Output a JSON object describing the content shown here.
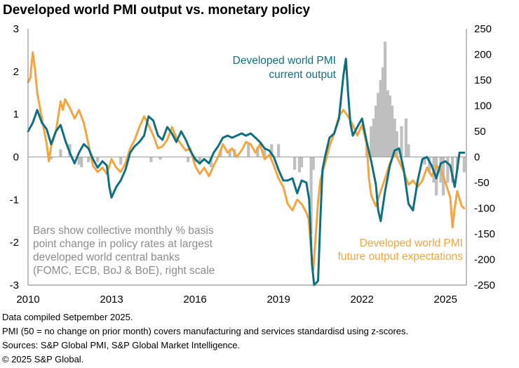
{
  "title": "Developed world PMI output vs. monetary policy",
  "annotations": {
    "current_output": [
      "Developed world PMI",
      "current output"
    ],
    "future_output": [
      "Developed world PMI",
      "future output expectations"
    ],
    "bars_note": [
      "Bars show collective monthly % basis",
      "point change in policy rates at largest",
      "developed world central banks",
      "(FOMC, ECB, BoJ & BoE), right scale"
    ]
  },
  "footnotes": [
    "Data compiled Setpember 2025.",
    "PMI (50 = no change on prior month) covers manufacturing and services standardisd using z-scores.",
    "Sources: S&P Global PMI, S&P Global Market Intelligence.",
    "© 2025 S&P Global."
  ],
  "colors": {
    "current": "#0e6f80",
    "future": "#f2a540",
    "bars": "#bfbfbf",
    "axis": "#7f7f7f"
  },
  "chart_data": {
    "type": "line",
    "x_unit": "year",
    "xlim": [
      2010.0,
      2025.75
    ],
    "x_ticks": [
      2010,
      2013,
      2016,
      2019,
      2022,
      2025
    ],
    "x_tick_labels": [
      "2010",
      "2013",
      "2016",
      "2019",
      "2022",
      "2025"
    ],
    "ylim_left": [
      -3,
      3
    ],
    "y_ticks_left": [
      3,
      2,
      1,
      0,
      -1,
      -2,
      -3
    ],
    "ylim_right": [
      -250,
      250
    ],
    "y_ticks_right": [
      250,
      200,
      150,
      100,
      50,
      0,
      -50,
      -100,
      -150,
      -200,
      -250
    ],
    "grid": false,
    "series": [
      {
        "name": "Developed world PMI current output",
        "axis": "left",
        "points": [
          [
            2010.0,
            0.6
          ],
          [
            2010.17,
            0.8
          ],
          [
            2010.33,
            1.1
          ],
          [
            2010.5,
            0.8
          ],
          [
            2010.67,
            0.65
          ],
          [
            2010.83,
            0.3
          ],
          [
            2011.0,
            0.6
          ],
          [
            2011.17,
            0.75
          ],
          [
            2011.33,
            0.4
          ],
          [
            2011.5,
            0.1
          ],
          [
            2011.67,
            -0.15
          ],
          [
            2011.83,
            0.1
          ],
          [
            2012.0,
            0.3
          ],
          [
            2012.17,
            0.2
          ],
          [
            2012.33,
            -0.05
          ],
          [
            2012.5,
            -0.25
          ],
          [
            2012.67,
            -0.1
          ],
          [
            2012.83,
            -0.2
          ],
          [
            2012.92,
            -0.7
          ],
          [
            2013.0,
            -0.95
          ],
          [
            2013.17,
            -0.7
          ],
          [
            2013.33,
            -0.55
          ],
          [
            2013.5,
            -0.3
          ],
          [
            2013.67,
            0.1
          ],
          [
            2013.83,
            0.25
          ],
          [
            2014.0,
            0.35
          ],
          [
            2014.17,
            0.5
          ],
          [
            2014.33,
            0.95
          ],
          [
            2014.5,
            0.85
          ],
          [
            2014.67,
            0.5
          ],
          [
            2014.83,
            0.4
          ],
          [
            2015.0,
            0.7
          ],
          [
            2015.17,
            0.55
          ],
          [
            2015.33,
            0.35
          ],
          [
            2015.5,
            0.6
          ],
          [
            2015.67,
            0.4
          ],
          [
            2015.83,
            0.15
          ],
          [
            2016.0,
            -0.05
          ],
          [
            2016.17,
            -0.15
          ],
          [
            2016.33,
            -0.05
          ],
          [
            2016.5,
            -0.15
          ],
          [
            2016.67,
            0.1
          ],
          [
            2016.83,
            0.25
          ],
          [
            2017.0,
            0.45
          ],
          [
            2017.17,
            0.5
          ],
          [
            2017.33,
            0.45
          ],
          [
            2017.5,
            0.5
          ],
          [
            2017.67,
            0.55
          ],
          [
            2017.83,
            0.5
          ],
          [
            2018.0,
            0.55
          ],
          [
            2018.17,
            0.45
          ],
          [
            2018.33,
            0.35
          ],
          [
            2018.5,
            0.2
          ],
          [
            2018.67,
            0.15
          ],
          [
            2018.83,
            0.0
          ],
          [
            2019.0,
            -0.3
          ],
          [
            2019.17,
            -0.55
          ],
          [
            2019.33,
            -0.55
          ],
          [
            2019.5,
            -0.5
          ],
          [
            2019.67,
            -0.85
          ],
          [
            2019.83,
            -0.55
          ],
          [
            2020.0,
            -0.6
          ],
          [
            2020.1,
            -1.0
          ],
          [
            2020.2,
            -2.5
          ],
          [
            2020.28,
            -3.0
          ],
          [
            2020.42,
            -2.9
          ],
          [
            2020.5,
            -1.5
          ],
          [
            2020.58,
            -0.3
          ],
          [
            2020.67,
            0.0
          ],
          [
            2020.83,
            0.45
          ],
          [
            2021.0,
            0.55
          ],
          [
            2021.17,
            0.9
          ],
          [
            2021.33,
            1.9
          ],
          [
            2021.42,
            2.3
          ],
          [
            2021.5,
            1.5
          ],
          [
            2021.58,
            0.8
          ],
          [
            2021.67,
            0.5
          ],
          [
            2021.83,
            0.7
          ],
          [
            2022.0,
            0.9
          ],
          [
            2022.17,
            0.35
          ],
          [
            2022.33,
            -0.1
          ],
          [
            2022.5,
            -0.65
          ],
          [
            2022.58,
            -1.25
          ],
          [
            2022.67,
            -1.5
          ],
          [
            2022.83,
            -0.8
          ],
          [
            2023.0,
            -0.2
          ],
          [
            2023.17,
            0.15
          ],
          [
            2023.33,
            0.2
          ],
          [
            2023.5,
            -0.3
          ],
          [
            2023.67,
            -1.1
          ],
          [
            2023.83,
            -1.25
          ],
          [
            2024.0,
            -0.55
          ],
          [
            2024.17,
            -0.05
          ],
          [
            2024.33,
            0.0
          ],
          [
            2024.5,
            -0.2
          ],
          [
            2024.67,
            -0.5
          ],
          [
            2024.83,
            -0.15
          ],
          [
            2025.0,
            -0.1
          ],
          [
            2025.17,
            -0.2
          ],
          [
            2025.33,
            -0.7
          ],
          [
            2025.42,
            -0.3
          ],
          [
            2025.5,
            0.1
          ],
          [
            2025.67,
            0.1
          ]
        ]
      },
      {
        "name": "Developed world PMI future output expectations",
        "axis": "left",
        "points": [
          [
            2010.0,
            1.75
          ],
          [
            2010.08,
            1.85
          ],
          [
            2010.17,
            2.45
          ],
          [
            2010.25,
            2.05
          ],
          [
            2010.33,
            1.5
          ],
          [
            2010.5,
            0.9
          ],
          [
            2010.67,
            0.3
          ],
          [
            2010.75,
            -0.1
          ],
          [
            2010.83,
            0.25
          ],
          [
            2011.0,
            0.6
          ],
          [
            2011.17,
            1.3
          ],
          [
            2011.25,
            1.1
          ],
          [
            2011.33,
            1.35
          ],
          [
            2011.5,
            1.15
          ],
          [
            2011.67,
            0.9
          ],
          [
            2011.83,
            1.1
          ],
          [
            2012.0,
            0.8
          ],
          [
            2012.17,
            0.3
          ],
          [
            2012.33,
            -0.2
          ],
          [
            2012.5,
            -0.35
          ],
          [
            2012.67,
            -0.25
          ],
          [
            2012.83,
            -0.4
          ],
          [
            2013.0,
            -0.05
          ],
          [
            2013.17,
            -0.25
          ],
          [
            2013.33,
            -0.35
          ],
          [
            2013.5,
            -0.15
          ],
          [
            2013.67,
            0.2
          ],
          [
            2013.83,
            0.4
          ],
          [
            2014.0,
            0.7
          ],
          [
            2014.17,
            0.95
          ],
          [
            2014.33,
            0.75
          ],
          [
            2014.5,
            0.5
          ],
          [
            2014.67,
            0.2
          ],
          [
            2014.83,
            0.25
          ],
          [
            2015.0,
            0.4
          ],
          [
            2015.17,
            0.7
          ],
          [
            2015.33,
            0.45
          ],
          [
            2015.5,
            0.3
          ],
          [
            2015.67,
            0.15
          ],
          [
            2015.83,
            0.2
          ],
          [
            2016.0,
            -0.2
          ],
          [
            2016.17,
            -0.4
          ],
          [
            2016.33,
            -0.25
          ],
          [
            2016.5,
            -0.45
          ],
          [
            2016.67,
            -0.2
          ],
          [
            2016.83,
            0.0
          ],
          [
            2017.0,
            0.3
          ],
          [
            2017.17,
            0.1
          ],
          [
            2017.33,
            0.2
          ],
          [
            2017.5,
            0.0
          ],
          [
            2017.67,
            0.15
          ],
          [
            2017.83,
            0.35
          ],
          [
            2018.0,
            0.3
          ],
          [
            2018.17,
            0.1
          ],
          [
            2018.33,
            0.3
          ],
          [
            2018.5,
            -0.05
          ],
          [
            2018.67,
            0.05
          ],
          [
            2018.83,
            -0.2
          ],
          [
            2019.0,
            -0.5
          ],
          [
            2019.17,
            -0.7
          ],
          [
            2019.33,
            -1.1
          ],
          [
            2019.5,
            -1.25
          ],
          [
            2019.67,
            -1.0
          ],
          [
            2019.83,
            -1.1
          ],
          [
            2020.0,
            -1.3
          ],
          [
            2020.08,
            -1.45
          ],
          [
            2020.17,
            -2.2
          ],
          [
            2020.25,
            -2.65
          ],
          [
            2020.33,
            -1.9
          ],
          [
            2020.42,
            -1.05
          ],
          [
            2020.5,
            -0.55
          ],
          [
            2020.67,
            -0.15
          ],
          [
            2020.83,
            0.25
          ],
          [
            2021.0,
            0.55
          ],
          [
            2021.17,
            0.95
          ],
          [
            2021.33,
            1.1
          ],
          [
            2021.5,
            0.95
          ],
          [
            2021.67,
            0.75
          ],
          [
            2021.83,
            0.5
          ],
          [
            2022.0,
            0.75
          ],
          [
            2022.17,
            0.3
          ],
          [
            2022.25,
            -0.5
          ],
          [
            2022.33,
            -0.9
          ],
          [
            2022.5,
            -1.15
          ],
          [
            2022.67,
            -0.8
          ],
          [
            2022.83,
            -0.5
          ],
          [
            2023.0,
            -0.15
          ],
          [
            2023.17,
            0.1
          ],
          [
            2023.33,
            -0.1
          ],
          [
            2023.5,
            -0.35
          ],
          [
            2023.67,
            -0.65
          ],
          [
            2023.83,
            -0.55
          ],
          [
            2024.0,
            -0.7
          ],
          [
            2024.17,
            -0.55
          ],
          [
            2024.33,
            -0.25
          ],
          [
            2024.5,
            -0.45
          ],
          [
            2024.67,
            -0.2
          ],
          [
            2024.83,
            -0.3
          ],
          [
            2025.0,
            -0.6
          ],
          [
            2025.17,
            -0.95
          ],
          [
            2025.25,
            -1.65
          ],
          [
            2025.33,
            -1.2
          ],
          [
            2025.42,
            -0.8
          ],
          [
            2025.58,
            -1.15
          ],
          [
            2025.67,
            -1.2
          ]
        ]
      }
    ],
    "bars": {
      "name": "Monthly % basis point change in policy rates, largest developed world central banks",
      "axis": "right",
      "points": [
        [
          2010.83,
          -5
        ],
        [
          2011.17,
          15
        ],
        [
          2011.5,
          25
        ],
        [
          2011.83,
          -15
        ],
        [
          2011.92,
          -20
        ],
        [
          2012.17,
          -10
        ],
        [
          2012.5,
          -10
        ],
        [
          2013.33,
          -15
        ],
        [
          2014.42,
          -10
        ],
        [
          2014.75,
          -5
        ],
        [
          2015.75,
          -10
        ],
        [
          2016.0,
          -10
        ],
        [
          2016.17,
          -15
        ],
        [
          2016.58,
          -20
        ],
        [
          2016.92,
          15
        ],
        [
          2017.25,
          15
        ],
        [
          2017.42,
          15
        ],
        [
          2017.92,
          25
        ],
        [
          2018.25,
          20
        ],
        [
          2018.5,
          15
        ],
        [
          2018.75,
          25
        ],
        [
          2019.0,
          25
        ],
        [
          2019.58,
          -25
        ],
        [
          2019.75,
          -30
        ],
        [
          2019.83,
          -20
        ],
        [
          2020.17,
          -150
        ],
        [
          2020.25,
          -25
        ],
        [
          2022.17,
          25
        ],
        [
          2022.33,
          60
        ],
        [
          2022.42,
          75
        ],
        [
          2022.5,
          100
        ],
        [
          2022.58,
          125
        ],
        [
          2022.67,
          150
        ],
        [
          2022.75,
          175
        ],
        [
          2022.83,
          225
        ],
        [
          2022.92,
          130
        ],
        [
          2023.0,
          120
        ],
        [
          2023.08,
          100
        ],
        [
          2023.17,
          75
        ],
        [
          2023.25,
          50
        ],
        [
          2023.42,
          60
        ],
        [
          2023.58,
          75
        ],
        [
          2023.67,
          25
        ],
        [
          2024.25,
          -15
        ],
        [
          2024.42,
          -30
        ],
        [
          2024.58,
          -50
        ],
        [
          2024.67,
          -75
        ],
        [
          2024.83,
          -50
        ],
        [
          2024.92,
          -75
        ],
        [
          2025.08,
          -50
        ],
        [
          2025.25,
          -50
        ],
        [
          2025.42,
          -25
        ],
        [
          2025.67,
          -30
        ]
      ]
    }
  }
}
